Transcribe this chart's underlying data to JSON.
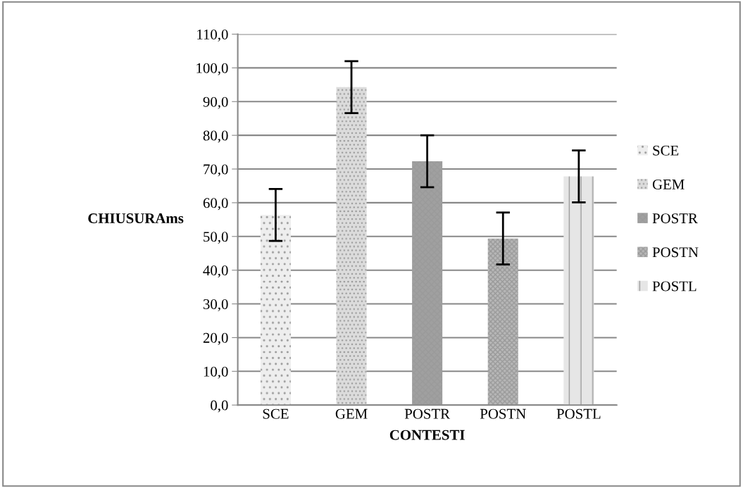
{
  "chart_data": {
    "type": "bar",
    "xlabel": "CONTESTI",
    "ylabel": "CHIUSURAms",
    "categories": [
      "SCE",
      "GEM",
      "POSTR",
      "POSTN",
      "POSTL"
    ],
    "series": [
      {
        "name": "SCE",
        "color": "#eeeeee",
        "values": [
          56.4,
          null,
          null,
          null,
          null
        ],
        "errors": [
          7.7,
          null,
          null,
          null,
          null
        ]
      },
      {
        "name": "GEM",
        "color": "#dcdcdc",
        "values": [
          null,
          94.3,
          null,
          null,
          null
        ],
        "errors": [
          null,
          7.7,
          null,
          null,
          null
        ]
      },
      {
        "name": "POSTR",
        "color": "#a0a0a0",
        "values": [
          null,
          null,
          72.3,
          null,
          null
        ],
        "errors": [
          null,
          null,
          7.7,
          null,
          null
        ]
      },
      {
        "name": "POSTN",
        "color": "#b8b8b8",
        "values": [
          null,
          null,
          null,
          49.4,
          null
        ],
        "errors": [
          null,
          null,
          null,
          7.7,
          null
        ]
      },
      {
        "name": "POSTL",
        "color": "#e6e6e6",
        "values": [
          null,
          null,
          null,
          null,
          67.8
        ],
        "errors": [
          null,
          null,
          null,
          null,
          7.7
        ]
      }
    ],
    "ylim": [
      0,
      110
    ],
    "yticks": [
      {
        "value": 0,
        "label": "0,0"
      },
      {
        "value": 10,
        "label": "10,0"
      },
      {
        "value": 20,
        "label": "20,0"
      },
      {
        "value": 30,
        "label": "30,0"
      },
      {
        "value": 40,
        "label": "40,0"
      },
      {
        "value": 50,
        "label": "50,0"
      },
      {
        "value": 60,
        "label": "60,0"
      },
      {
        "value": 70,
        "label": "70,0"
      },
      {
        "value": 80,
        "label": "80,0"
      },
      {
        "value": 90,
        "label": "90,0"
      },
      {
        "value": 100,
        "label": "100,0"
      },
      {
        "value": 110,
        "label": "110,0"
      }
    ],
    "grid": "y",
    "legend": "right"
  }
}
